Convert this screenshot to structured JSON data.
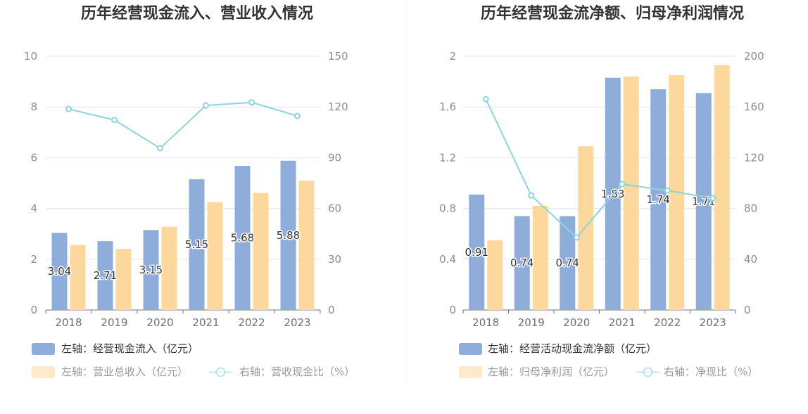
{
  "chart_data": [
    {
      "type": "bar",
      "title": "历年经营现金流入、营业收入情况",
      "categories": [
        "2018",
        "2019",
        "2020",
        "2021",
        "2022",
        "2023"
      ],
      "ylim": [
        0,
        10
      ],
      "y_ticks": [
        "0",
        "2",
        "4",
        "6",
        "8",
        "10"
      ],
      "y2lim": [
        0,
        150
      ],
      "y2_ticks": [
        "0",
        "30",
        "60",
        "90",
        "120",
        "150"
      ],
      "grid": true,
      "legend_position": "bottom",
      "series": [
        {
          "name": "左轴：经营现金流入（亿元）",
          "type": "bar",
          "axis": "left",
          "color": "#8eadda",
          "data_labels": true,
          "values": [
            3.04,
            2.71,
            3.15,
            5.15,
            5.68,
            5.88
          ]
        },
        {
          "name": "左轴：营业总收入（亿元）",
          "type": "bar",
          "axis": "left",
          "color": "#fdd89d",
          "data_labels": false,
          "values": [
            2.56,
            2.41,
            3.28,
            4.25,
            4.61,
            5.1
          ]
        },
        {
          "name": "右轴：营收现金比（%）",
          "type": "line",
          "axis": "right",
          "color": "#8dd5db",
          "data_labels": false,
          "values": [
            118.8,
            112.3,
            95.6,
            120.9,
            122.7,
            114.7
          ]
        }
      ]
    },
    {
      "type": "bar",
      "title": "历年经营现金流净额、归母净利润情况",
      "categories": [
        "2018",
        "2019",
        "2020",
        "2021",
        "2022",
        "2023"
      ],
      "ylim": [
        0,
        2
      ],
      "y_ticks": [
        "0",
        "0.4",
        "0.8",
        "1.2",
        "1.6",
        "2"
      ],
      "y2lim": [
        0,
        200
      ],
      "y2_ticks": [
        "0",
        "40",
        "80",
        "120",
        "160",
        "200"
      ],
      "grid": true,
      "legend_position": "bottom",
      "series": [
        {
          "name": "左轴：经营活动现金流净额（亿元）",
          "type": "bar",
          "axis": "left",
          "color": "#8eadda",
          "data_labels": true,
          "values": [
            0.91,
            0.74,
            0.74,
            1.83,
            1.74,
            1.71
          ]
        },
        {
          "name": "左轴：归母净利润（亿元）",
          "type": "bar",
          "axis": "left",
          "color": "#fdd89d",
          "data_labels": false,
          "values": [
            0.55,
            0.82,
            1.29,
            1.84,
            1.85,
            1.93
          ]
        },
        {
          "name": "右轴：净现比（%）",
          "type": "line",
          "axis": "right",
          "color": "#8dd5db",
          "data_labels": false,
          "values": [
            166.2,
            90.3,
            57.1,
            99.2,
            94.2,
            88.1
          ]
        }
      ]
    }
  ]
}
